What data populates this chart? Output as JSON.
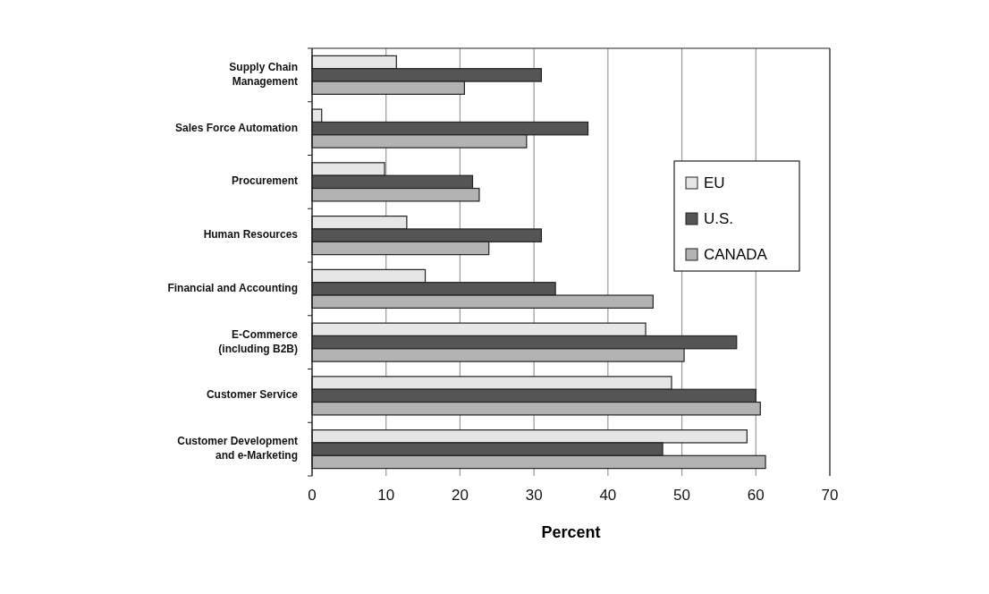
{
  "chart_data": {
    "type": "bar",
    "orientation": "horizontal",
    "xlabel": "Percent",
    "categories": [
      "Supply Chain\nManagement",
      "Sales Force Automation",
      "Procurement",
      "Human Resources",
      "Financial and Accounting",
      "E-Commerce\n(including B2B)",
      "Customer Service",
      "Customer Development\nand e-Marketing"
    ],
    "series": [
      {
        "name": "EU",
        "color": "#e6e6e6",
        "values": [
          11.4,
          1.3,
          9.8,
          12.8,
          15.3,
          45.1,
          48.6,
          58.8
        ]
      },
      {
        "name": "U.S.",
        "color": "#555555",
        "values": [
          31,
          37.3,
          21.7,
          31,
          32.9,
          57.4,
          60,
          47.4
        ]
      },
      {
        "name": "CANADA",
        "color": "#b3b3b3",
        "values": [
          20.6,
          29,
          22.6,
          23.9,
          46.1,
          50.3,
          60.6,
          61.3
        ]
      }
    ],
    "xlim": [
      0,
      70
    ],
    "xticks": [
      0,
      10,
      20,
      30,
      40,
      50,
      60,
      70
    ],
    "grid": "x",
    "legend": "right"
  }
}
